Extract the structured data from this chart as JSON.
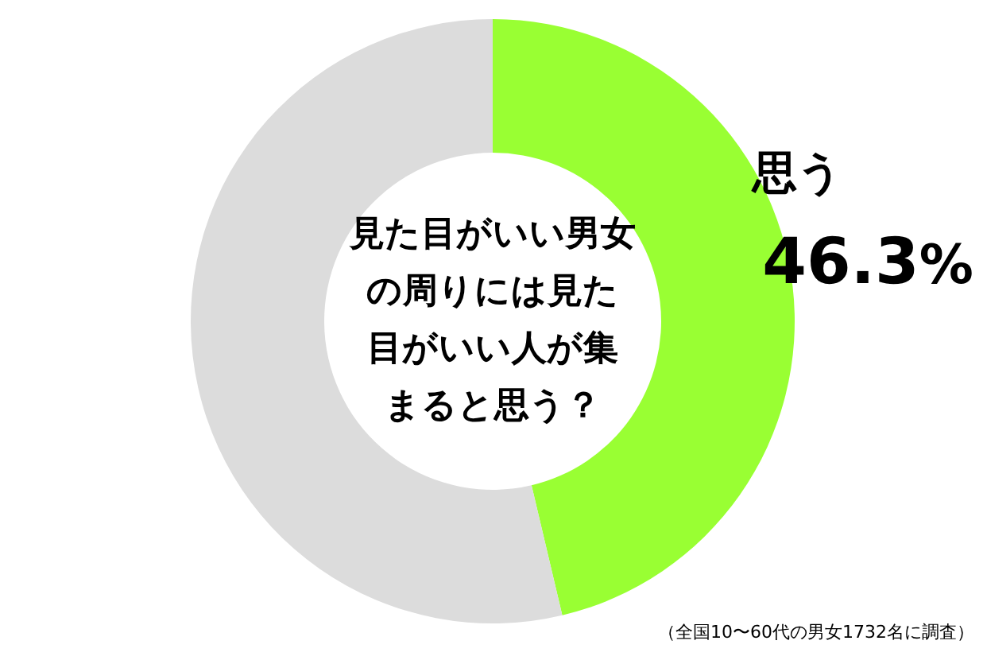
{
  "chart_data": {
    "type": "donut",
    "title": "見た目がいい男女の周りには見た目がいい人が集まると思う？",
    "categories": [
      "思う",
      null
    ],
    "values": [
      46.3,
      53.7
    ],
    "colors": [
      "#99ff33",
      "#dcdcdc"
    ],
    "value_labels": [
      "46.3%",
      null
    ],
    "annotations": [
      "（全国10〜60代の男女1732名に調査）"
    ]
  }
}
